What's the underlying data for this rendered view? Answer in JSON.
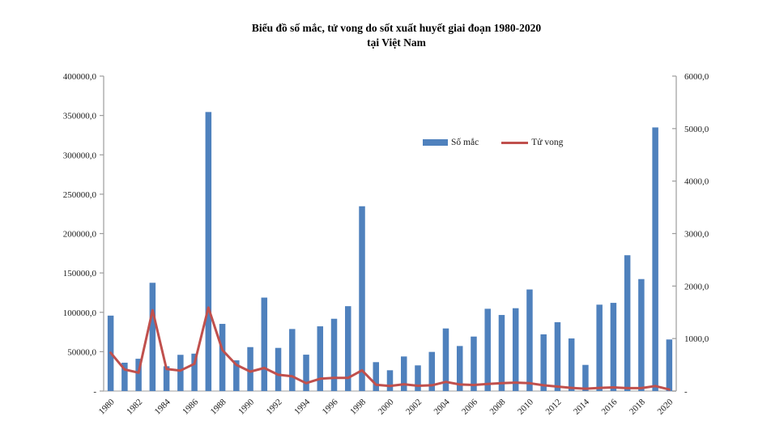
{
  "page": {
    "background": "#ffffff"
  },
  "chart_data": {
    "type": "bar",
    "combo": "bar+line dual axis",
    "title": "Biểu đồ số mắc, tử vong do sốt xuất huyết giai đoạn 1980-2020 tại Việt Nam",
    "title_line1": "Biểu đồ số mắc, tử vong do sốt xuất huyết giai đoạn 1980-2020",
    "title_line2": "tại Việt Nam",
    "categories": [
      "1980",
      "1981",
      "1982",
      "1983",
      "1984",
      "1985",
      "1986",
      "1987",
      "1988",
      "1989",
      "1990",
      "1991",
      "1992",
      "1993",
      "1994",
      "1995",
      "1996",
      "1997",
      "1998",
      "1999",
      "2000",
      "2001",
      "2002",
      "2003",
      "2004",
      "2005",
      "2006",
      "2007",
      "2008",
      "2009",
      "2010",
      "2011",
      "2012",
      "2013",
      "2014",
      "2015",
      "2016",
      "2017",
      "2018",
      "2019",
      "2020"
    ],
    "series": [
      {
        "name": "Số mắc",
        "render": "bar",
        "axis": "left",
        "color": "#4F81BD",
        "values": [
          95800,
          36000,
          41000,
          137500,
          31500,
          46000,
          47500,
          354400,
          85300,
          39000,
          55800,
          118700,
          54800,
          78800,
          46200,
          82200,
          91800,
          107800,
          234700,
          36700,
          26400,
          43900,
          32600,
          49700,
          79500,
          57200,
          69200,
          104500,
          96600,
          105200,
          129000,
          72000,
          87400,
          66800,
          33200,
          109700,
          112000,
          172500,
          142200,
          334800,
          65500
        ]
      },
      {
        "name": "Tử vong",
        "render": "line",
        "axis": "right",
        "color": "#C0504D",
        "values": [
          730,
          410,
          350,
          1540,
          420,
          390,
          520,
          1590,
          780,
          500,
          370,
          440,
          310,
          280,
          150,
          235,
          250,
          250,
          395,
          120,
          95,
          130,
          100,
          110,
          175,
          125,
          115,
          135,
          150,
          160,
          150,
          110,
          85,
          60,
          45,
          60,
          70,
          55,
          55,
          95,
          30
        ]
      }
    ],
    "left_axis": {
      "min": 0,
      "max": 400000,
      "step": 50000,
      "tick_labels": [
        "400000,0",
        "350000,0",
        "300000,0",
        "250000,0",
        "200000,0",
        "150000,0",
        "100000,0",
        "50000,0",
        "-"
      ]
    },
    "right_axis": {
      "min": 0,
      "max": 6000,
      "step": 1000,
      "tick_labels": [
        "6000,0",
        "5000,0",
        "4000,0",
        "3000,0",
        "2000,0",
        "1000,0",
        "-"
      ]
    },
    "x_axis": {
      "tick_labels": [
        "1980",
        "1982",
        "1984",
        "1986",
        "1988",
        "1990",
        "1992",
        "1994",
        "1996",
        "1998",
        "2000",
        "2002",
        "2004",
        "2006",
        "2008",
        "2010",
        "2012",
        "2014",
        "2016",
        "2018",
        "2020"
      ],
      "label_every": 2,
      "label_rotation_deg": -45
    },
    "legend": {
      "position": "inside-upper-right",
      "items": [
        {
          "label": "Số mắc",
          "swatch": "bar",
          "color": "#4F81BD"
        },
        {
          "label": "Tử vong",
          "swatch": "line",
          "color": "#C0504D"
        }
      ]
    },
    "grid": false,
    "axis_line_color": "#9C9C9C",
    "tick_text_color": "#1a1a1a",
    "ylim_left": [
      0,
      400000
    ],
    "ylim_right": [
      0,
      6000
    ]
  }
}
